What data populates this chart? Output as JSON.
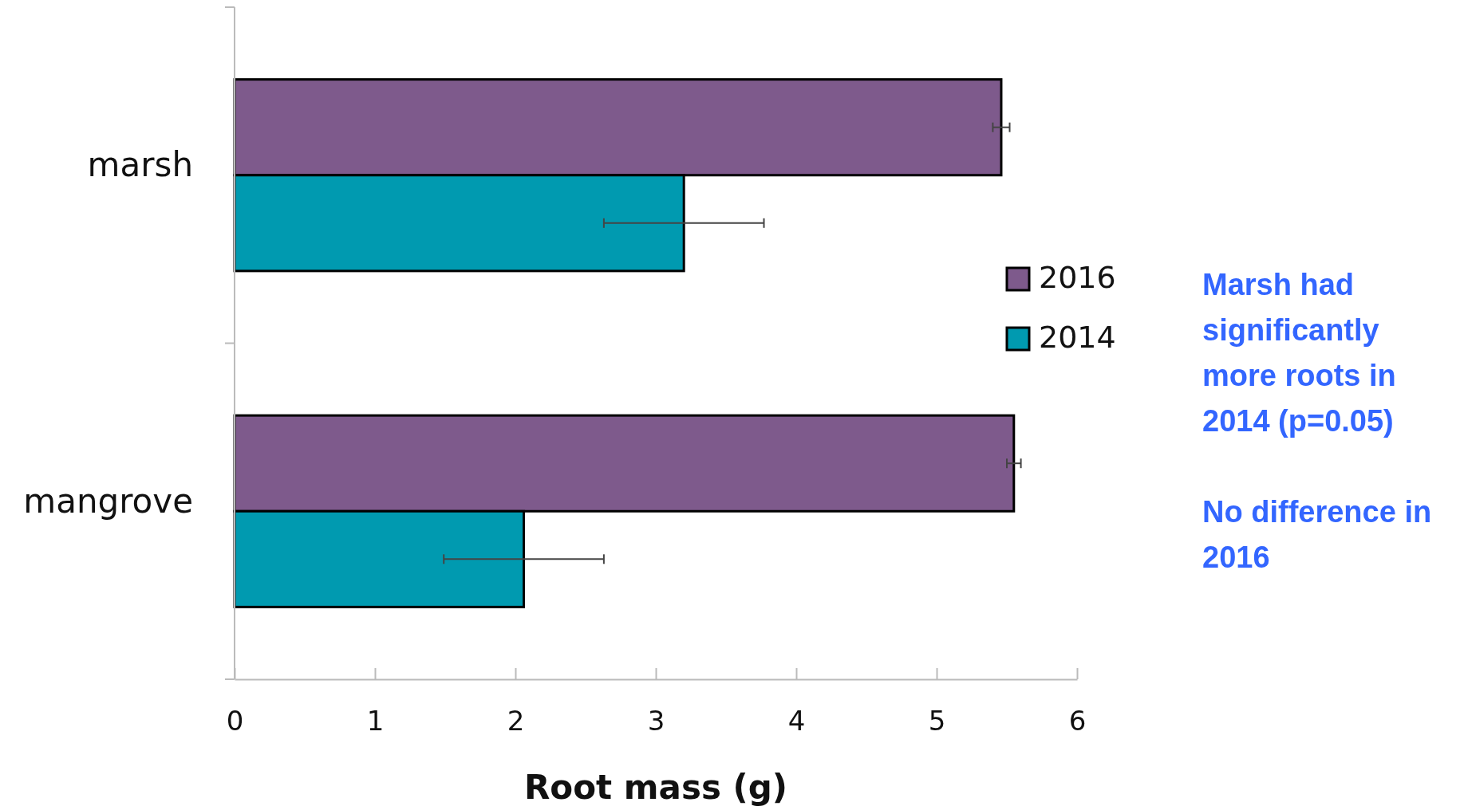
{
  "chart_data": {
    "type": "bar",
    "orientation": "horizontal",
    "categories": [
      "marsh",
      "mangrove"
    ],
    "series": [
      {
        "name": "2016",
        "color": "#7e5a8c",
        "values": [
          5.46,
          5.55
        ],
        "errors": [
          0.06,
          0.05
        ]
      },
      {
        "name": "2014",
        "color": "#009ab0",
        "values": [
          3.2,
          2.06
        ],
        "errors": [
          0.57,
          0.57
        ]
      }
    ],
    "xlabel": "Root mass (g)",
    "xlim": [
      0,
      6
    ],
    "xticks": [
      0,
      1,
      2,
      3,
      4,
      5,
      6
    ],
    "legend": "right",
    "grid": false,
    "annotations": [
      "Marsh had significantly more roots in 2014 (p=0.05)",
      "No difference in 2016"
    ]
  }
}
